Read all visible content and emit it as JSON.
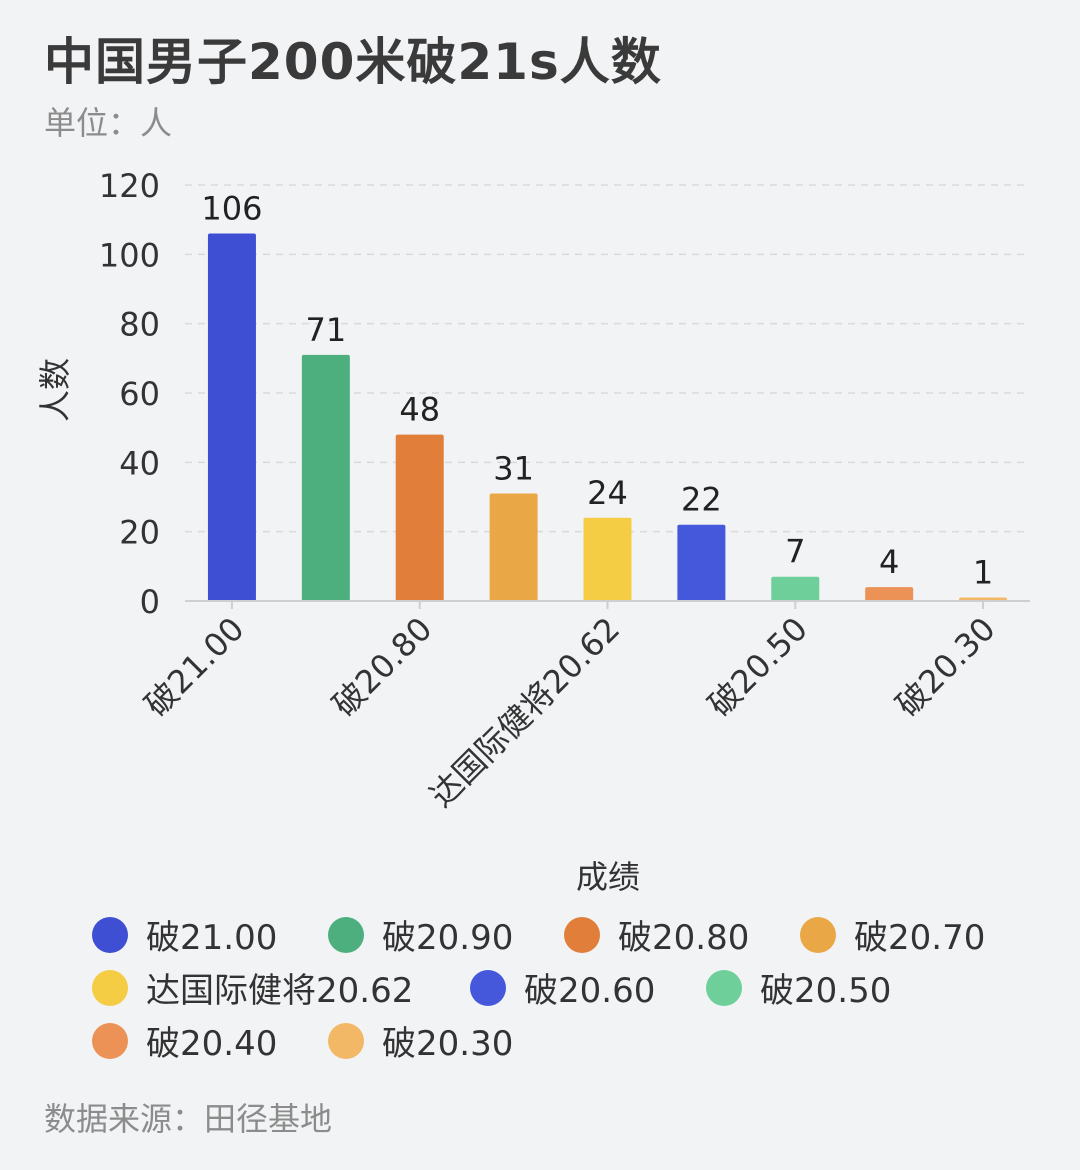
{
  "title": "中国男子200米破21s人数",
  "unit_label": "单位：人",
  "source_label": "数据来源：田径基地",
  "chart_data": {
    "type": "bar",
    "categories": [
      "破21.00",
      "破20.90",
      "破20.80",
      "破20.70",
      "达国际健将20.62",
      "破20.60",
      "破20.50",
      "破20.40",
      "破20.30"
    ],
    "shown_tick_labels": [
      "破21.00",
      "破20.80",
      "达国际健将20.62",
      "破20.50",
      "破20.30"
    ],
    "values": [
      106,
      71,
      48,
      31,
      24,
      22,
      7,
      4,
      1
    ],
    "colors": [
      "#3e4fd3",
      "#4caf7d",
      "#e07e3a",
      "#e9a845",
      "#f4cd45",
      "#4558db",
      "#6fcf9a",
      "#ec9257",
      "#f2b865"
    ],
    "xlabel": "成绩",
    "ylabel": "人数",
    "ylim": [
      0,
      120
    ],
    "yticks": [
      0,
      20,
      40,
      60,
      80,
      100,
      120
    ],
    "grid": true,
    "legend_placement": "bottom"
  }
}
